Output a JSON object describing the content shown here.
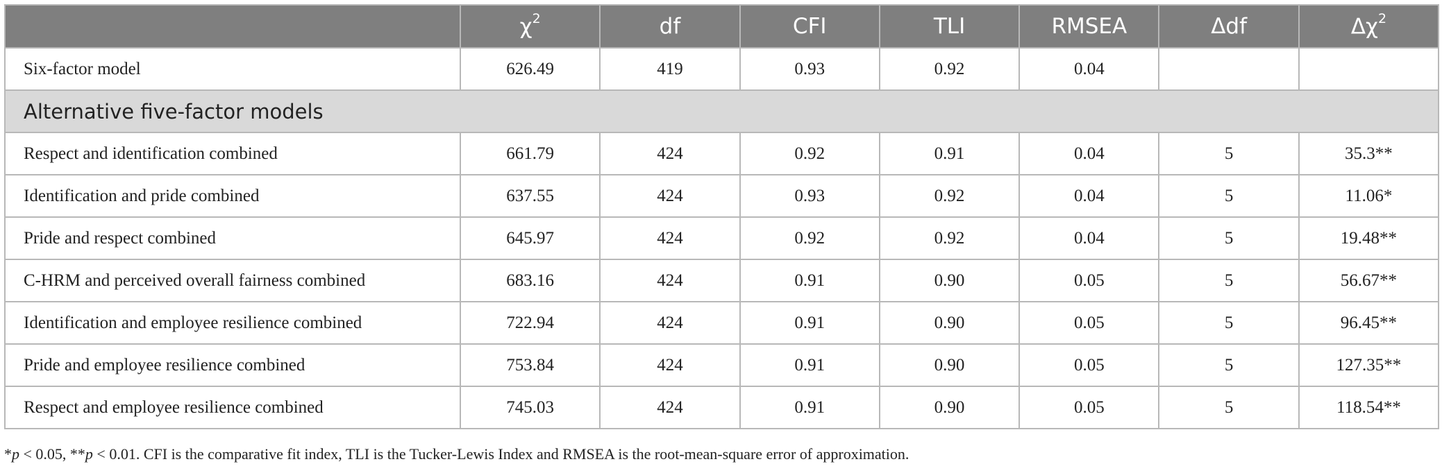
{
  "headers": {
    "col0": "",
    "chi2": "χ",
    "chi2_sup": "2",
    "df": "df",
    "cfi": "CFI",
    "tli": "TLI",
    "rmsea": "RMSEA",
    "delta_df": "Δdf",
    "delta_chi2": "Δχ",
    "delta_chi2_sup": "2"
  },
  "baseline": [
    "Six-factor model",
    "626.49",
    "419",
    "0.93",
    "0.92",
    "0.04",
    "",
    ""
  ],
  "section_title": "Alternative five-factor models",
  "rows": [
    [
      "Respect and identification combined",
      "661.79",
      "424",
      "0.92",
      "0.91",
      "0.04",
      "5",
      "35.3**"
    ],
    [
      "Identification and pride combined",
      "637.55",
      "424",
      "0.93",
      "0.92",
      "0.04",
      "5",
      "11.06*"
    ],
    [
      "Pride and respect combined",
      "645.97",
      "424",
      "0.92",
      "0.92",
      "0.04",
      "5",
      "19.48**"
    ],
    [
      "C-HRM and perceived overall fairness combined",
      "683.16",
      "424",
      "0.91",
      "0.90",
      "0.05",
      "5",
      "56.67**"
    ],
    [
      "Identification and employee resilience combined",
      "722.94",
      "424",
      "0.91",
      "0.90",
      "0.05",
      "5",
      "96.45**"
    ],
    [
      "Pride and employee resilience combined",
      "753.84",
      "424",
      "0.91",
      "0.90",
      "0.05",
      "5",
      "127.35**"
    ],
    [
      "Respect and employee resilience combined",
      "745.03",
      "424",
      "0.91",
      "0.90",
      "0.05",
      "5",
      "118.54**"
    ]
  ],
  "footnote": {
    "star1": "*",
    "p1": "p",
    "t1": " < 0.05, ",
    "star2": "**",
    "p2": "p",
    "t2": " < 0.01. CFI is the comparative fit index, TLI is the Tucker-Lewis Index and RMSEA is the root-mean-square error of approximation."
  }
}
